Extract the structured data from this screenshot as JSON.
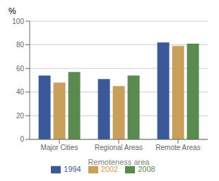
{
  "chart_data": {
    "type": "bar",
    "categories": [
      "Major Cities",
      "Regional Areas",
      "Remote Areas"
    ],
    "series": [
      {
        "name": "1994",
        "color": "#3B5998",
        "values": [
          54,
          51,
          82
        ]
      },
      {
        "name": "2002",
        "color": "#C8A05C",
        "values": [
          48,
          45,
          79
        ]
      },
      {
        "name": "2008",
        "color": "#5A8A50",
        "values": [
          57,
          54,
          81
        ]
      }
    ],
    "xlabel": "Remoteness area",
    "ylabel": "%",
    "ylim": [
      0,
      100
    ],
    "yticks": [
      0,
      20,
      40,
      60,
      80,
      100
    ],
    "grid": true,
    "legend": "bottom"
  }
}
